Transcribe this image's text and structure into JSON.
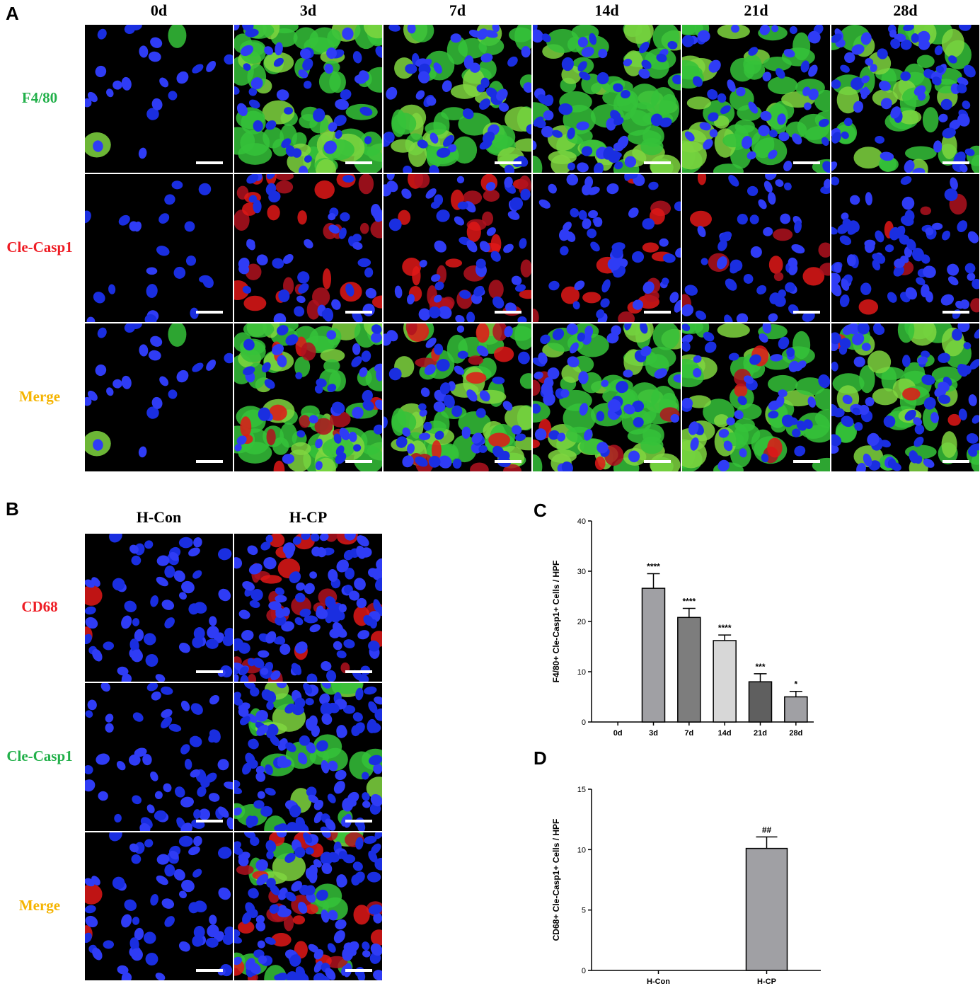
{
  "panel_a": {
    "letter": "A",
    "columns": [
      "0d",
      "3d",
      "7d",
      "14d",
      "21d",
      "28d"
    ],
    "rows": [
      {
        "label": "F4/80",
        "color": "#22b04a"
      },
      {
        "label": "Cle-Casp1",
        "color": "#ee1c24"
      },
      {
        "label": "Merge",
        "color": "#f5b400"
      }
    ]
  },
  "panel_b": {
    "letter": "B",
    "columns": [
      "H-Con",
      "H-CP"
    ],
    "rows": [
      {
        "label": "CD68",
        "color": "#ee1c24"
      },
      {
        "label": "Cle-Casp1",
        "color": "#22b04a"
      },
      {
        "label": "Merge",
        "color": "#f5b400"
      }
    ]
  },
  "chart_data": [
    {
      "panel": "C",
      "type": "bar",
      "categories": [
        "0d",
        "3d",
        "7d",
        "14d",
        "21d",
        "28d"
      ],
      "values": [
        0,
        26.6,
        20.8,
        16.2,
        8.0,
        5.0
      ],
      "errors": [
        0,
        2.9,
        1.8,
        1.1,
        1.6,
        1.1
      ],
      "annotations": [
        "",
        "****",
        "****",
        "****",
        "***",
        "*"
      ],
      "bar_colors": [
        "#a0a0a4",
        "#a0a0a4",
        "#7d7d7d",
        "#d7d7d7",
        "#5f5f5f",
        "#a0a0a4"
      ],
      "ylabel": "F4/80+ Cle-Casp1+ Cells / HPF",
      "xlabel": "",
      "ylim": [
        0,
        40
      ],
      "yticks": [
        0,
        10,
        20,
        30,
        40
      ]
    },
    {
      "panel": "D",
      "type": "bar",
      "categories": [
        "H-Con",
        "H-CP"
      ],
      "values": [
        0,
        10.1
      ],
      "errors": [
        0,
        0.95
      ],
      "annotations": [
        "",
        "##"
      ],
      "bar_colors": [
        "#a0a0a4",
        "#a0a0a4"
      ],
      "ylabel": "CD68+ Cle-Casp1+ Cells / HPF",
      "xlabel": "",
      "ylim": [
        0,
        15
      ],
      "yticks": [
        0,
        5,
        10,
        15
      ]
    }
  ]
}
